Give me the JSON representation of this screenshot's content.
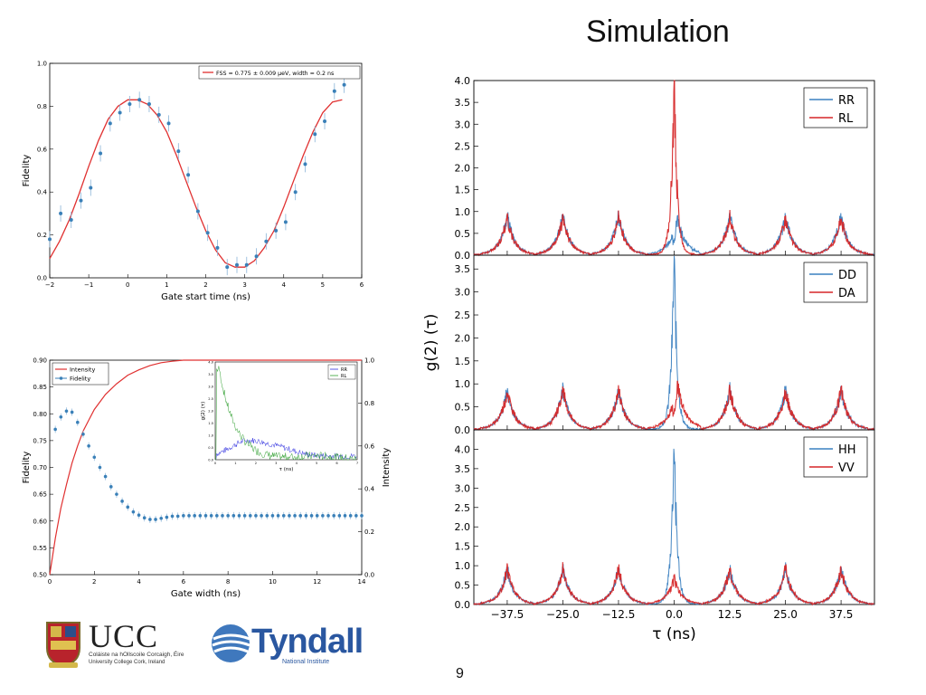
{
  "slide": {
    "title": "Simulation",
    "page_number": "9"
  },
  "logos": {
    "ucc": {
      "name": "UCC",
      "line1": "Coláiste na hOllscoile Corcaigh, Éire",
      "line2": "University College Cork, Ireland"
    },
    "tyndall": {
      "name": "Tyndall",
      "subtitle": "National Institute"
    }
  },
  "chart_data": [
    {
      "id": "fidelity_vs_gate_start",
      "type": "line",
      "xlabel": "Gate start time (ns)",
      "ylabel": "Fidelity",
      "xlim": [
        -2,
        6
      ],
      "ylim": [
        0,
        1.0
      ],
      "xticks": [
        "−2",
        "−1",
        "0",
        "1",
        "2",
        "3",
        "4",
        "5",
        "6"
      ],
      "yticks": [
        "0.0",
        "0.2",
        "0.4",
        "0.6",
        "0.8",
        "1.0"
      ],
      "legend": "top-right",
      "colors": {
        "fit": "#e03030",
        "data": "#3a80b8"
      },
      "series": [
        {
          "name": "FSS = 0.775 ± 0.009 μeV, width = 0.2 ns",
          "kind": "fit",
          "x": [
            -2.0,
            -1.75,
            -1.5,
            -1.25,
            -1.0,
            -0.75,
            -0.5,
            -0.25,
            0.0,
            0.25,
            0.5,
            0.75,
            1.0,
            1.25,
            1.5,
            1.75,
            2.0,
            2.25,
            2.5,
            2.75,
            3.0,
            3.25,
            3.5,
            3.75,
            4.0,
            4.25,
            4.5,
            4.75,
            5.0,
            5.25,
            5.5
          ],
          "y": [
            0.09,
            0.17,
            0.27,
            0.39,
            0.52,
            0.64,
            0.74,
            0.8,
            0.83,
            0.83,
            0.81,
            0.76,
            0.68,
            0.57,
            0.45,
            0.33,
            0.22,
            0.13,
            0.07,
            0.05,
            0.05,
            0.08,
            0.14,
            0.22,
            0.33,
            0.45,
            0.57,
            0.68,
            0.77,
            0.82,
            0.83
          ]
        },
        {
          "name": "",
          "kind": "points",
          "x": [
            -2.0,
            -1.72,
            -1.45,
            -1.2,
            -0.95,
            -0.7,
            -0.45,
            -0.2,
            0.05,
            0.3,
            0.55,
            0.8,
            1.05,
            1.3,
            1.55,
            1.8,
            2.05,
            2.3,
            2.55,
            2.8,
            3.05,
            3.3,
            3.55,
            3.8,
            4.05,
            4.3,
            4.55,
            4.8,
            5.05,
            5.3,
            5.55
          ],
          "y": [
            0.18,
            0.3,
            0.27,
            0.36,
            0.42,
            0.58,
            0.72,
            0.77,
            0.81,
            0.83,
            0.81,
            0.76,
            0.72,
            0.59,
            0.48,
            0.31,
            0.21,
            0.14,
            0.05,
            0.06,
            0.06,
            0.1,
            0.17,
            0.22,
            0.26,
            0.4,
            0.53,
            0.67,
            0.73,
            0.87,
            0.9
          ]
        }
      ]
    },
    {
      "id": "fidelity_intensity_vs_gate_width",
      "type": "line",
      "xlabel": "Gate width (ns)",
      "ylabel": "Fidelity",
      "y2label": "Intensity",
      "xlim": [
        0,
        14
      ],
      "ylim": [
        0.5,
        0.9
      ],
      "y2lim": [
        0.0,
        1.0
      ],
      "xticks": [
        "0",
        "2",
        "4",
        "6",
        "8",
        "10",
        "12",
        "14"
      ],
      "yticks": [
        "0.50",
        "0.55",
        "0.60",
        "0.65",
        "0.70",
        "0.75",
        "0.80",
        "0.85",
        "0.90"
      ],
      "y2ticks": [
        "0.0",
        "0.2",
        "0.4",
        "0.6",
        "0.8",
        "1.0"
      ],
      "legend": "top-left",
      "colors": {
        "intensity": "#e03030",
        "fidelity": "#3a80b8"
      },
      "series": [
        {
          "name": "Intensity",
          "axis": "y2",
          "x": [
            0,
            0.25,
            0.5,
            0.75,
            1,
            1.25,
            1.5,
            1.75,
            2,
            2.5,
            3,
            3.5,
            4,
            4.5,
            5,
            5.5,
            6,
            7,
            8,
            10,
            12,
            14
          ],
          "y": [
            0.0,
            0.17,
            0.31,
            0.42,
            0.52,
            0.6,
            0.67,
            0.72,
            0.77,
            0.84,
            0.89,
            0.93,
            0.955,
            0.975,
            0.988,
            0.995,
            1.0,
            1.0,
            1.0,
            1.0,
            1.0,
            1.0
          ]
        },
        {
          "name": "Fidelity",
          "axis": "y",
          "x": [
            0.25,
            0.5,
            0.75,
            1.0,
            1.25,
            1.5,
            1.75,
            2.0,
            2.25,
            2.5,
            2.75,
            3.0,
            3.25,
            3.5,
            3.75,
            4.0,
            4.25,
            4.5,
            4.75,
            5.0,
            5.25,
            5.5,
            5.75,
            6.0,
            6.25,
            6.5,
            6.75,
            7.0,
            7.25,
            7.5,
            7.75,
            8.0,
            8.25,
            8.5,
            8.75,
            9.0,
            9.25,
            9.5,
            9.75,
            10.0,
            10.25,
            10.5,
            10.75,
            11.0,
            11.25,
            11.5,
            11.75,
            12.0,
            12.25,
            12.5,
            12.75,
            13.0,
            13.25,
            13.5,
            13.75,
            14.0
          ],
          "y": [
            0.771,
            0.794,
            0.805,
            0.803,
            0.784,
            0.762,
            0.74,
            0.719,
            0.7,
            0.683,
            0.664,
            0.65,
            0.637,
            0.626,
            0.617,
            0.611,
            0.606,
            0.603,
            0.603,
            0.605,
            0.607,
            0.609,
            0.609,
            0.61,
            0.61,
            0.61,
            0.61,
            0.61,
            0.61,
            0.61,
            0.61,
            0.61,
            0.61,
            0.61,
            0.61,
            0.61,
            0.61,
            0.61,
            0.61,
            0.61,
            0.61,
            0.61,
            0.61,
            0.61,
            0.61,
            0.61,
            0.61,
            0.61,
            0.61,
            0.61,
            0.61,
            0.61,
            0.61,
            0.61,
            0.61,
            0.61
          ]
        }
      ],
      "inset": {
        "ylabel": "g(2) (τ)",
        "xlabel": "τ (ns)",
        "legend": "top-right",
        "ylim": [
          0,
          4.0
        ],
        "yticks": [
          "0.0",
          "0.5",
          "1.0",
          "1.5",
          "2.0",
          "2.5",
          "3.0",
          "3.5",
          "4.0"
        ],
        "xticks": [
          "0",
          "1",
          "2",
          "3",
          "4",
          "5",
          "6",
          "7"
        ],
        "series": [
          {
            "name": "RR",
            "color": "#3030e0"
          },
          {
            "name": "RL",
            "color": "#30a030"
          }
        ]
      }
    },
    {
      "id": "g2_simulation",
      "type": "line",
      "ylabel": "g(2) (τ)",
      "xlabel": "τ (ns)",
      "xlim": [
        -45,
        45
      ],
      "xticks": [
        "−37.5",
        "−25.0",
        "−12.5",
        "0.0",
        "12.5",
        "25.0",
        "37.5"
      ],
      "peak_positions": [
        -37.5,
        -25.0,
        -12.5,
        0.0,
        12.5,
        25.0,
        37.5
      ],
      "panels": [
        {
          "ylim": [
            0,
            4.0
          ],
          "yticks": [
            "0.0",
            "0.5",
            "1.0",
            "1.5",
            "2.0",
            "2.5",
            "3.0",
            "3.5",
            "4.0"
          ],
          "legend": "top-right",
          "series": [
            {
              "name": "RR",
              "color": "#3a80c0",
              "side_peak": 0.9,
              "center_peak": 0.8,
              "center_shape": "dip"
            },
            {
              "name": "RL",
              "color": "#d62728",
              "side_peak": 0.85,
              "center_peak": 3.95,
              "center_shape": "spike"
            }
          ]
        },
        {
          "ylim": [
            0,
            3.8
          ],
          "yticks": [
            "0.0",
            "0.5",
            "1.0",
            "1.5",
            "2.0",
            "2.5",
            "3.0",
            "3.5"
          ],
          "legend": "top-right",
          "series": [
            {
              "name": "DD",
              "color": "#3a80c0",
              "side_peak": 0.85,
              "center_peak": 3.7,
              "center_shape": "spike"
            },
            {
              "name": "DA",
              "color": "#d62728",
              "side_peak": 0.85,
              "center_peak": 0.95,
              "center_shape": "dip"
            }
          ]
        },
        {
          "ylim": [
            0,
            4.5
          ],
          "yticks": [
            "0.0",
            "0.5",
            "1.0",
            "1.5",
            "2.0",
            "2.5",
            "3.0",
            "3.5",
            "4.0"
          ],
          "legend": "top-right",
          "series": [
            {
              "name": "HH",
              "color": "#3a80c0",
              "side_peak": 0.9,
              "center_peak": 4.2,
              "center_shape": "spike"
            },
            {
              "name": "VV",
              "color": "#d62728",
              "side_peak": 0.9,
              "center_peak": 0.65,
              "center_shape": "small"
            }
          ]
        }
      ]
    }
  ]
}
